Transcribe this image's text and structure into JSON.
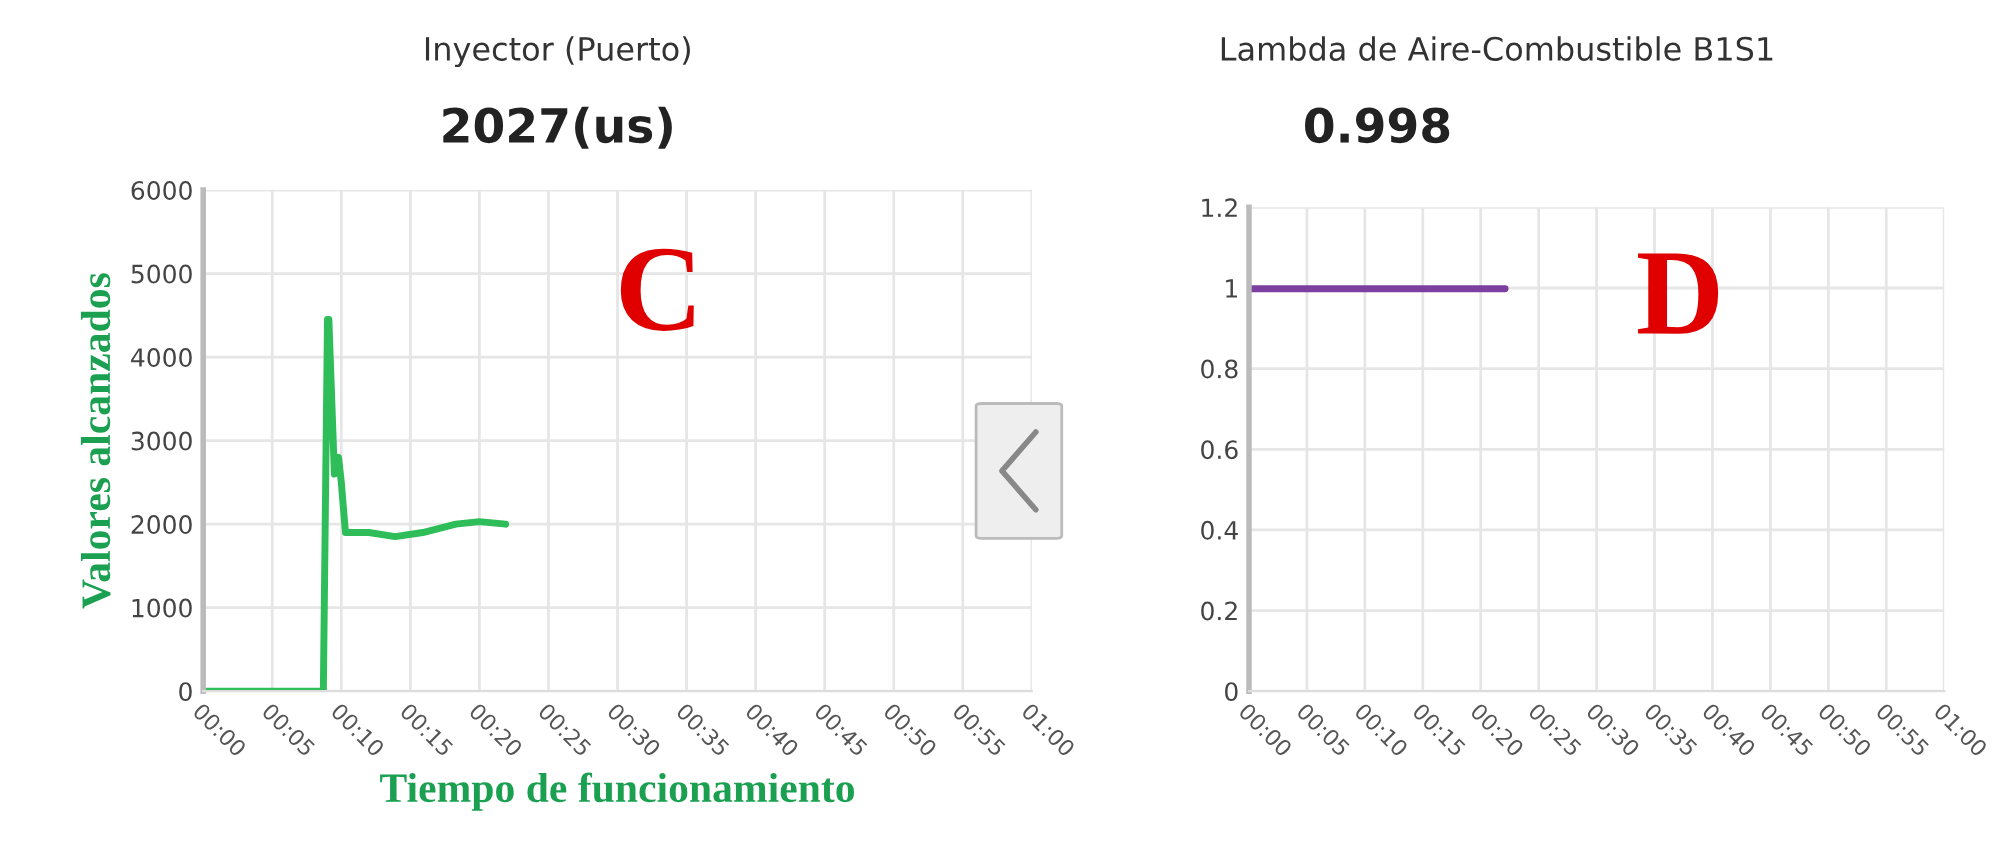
{
  "chart_data": [
    {
      "type": "line",
      "title": "Inyector (Puerto)",
      "subtitle": "2027(us)",
      "xlabel": "Tiempo de funcionamiento",
      "ylabel": "Valores alcanzados",
      "annotations": [
        "C"
      ],
      "series": [
        {
          "color": "#2ebd59",
          "x": [
            0,
            8.7,
            9.0,
            9.1,
            9.5,
            9.8,
            10.0,
            10.3,
            11.0,
            12.0,
            13.9,
            15.9,
            18.3,
            20.0,
            21.9
          ],
          "values": [
            0,
            0,
            4450,
            4450,
            2600,
            2800,
            2500,
            1900,
            1900,
            1900,
            1850,
            1900,
            2000,
            2030,
            2000
          ]
        }
      ],
      "xlim": [
        0,
        60
      ],
      "xticks": [
        {
          "value": 0,
          "label": "00:00"
        },
        {
          "value": 5,
          "label": "00:05"
        },
        {
          "value": 10,
          "label": "00:10"
        },
        {
          "value": 15,
          "label": "00:15"
        },
        {
          "value": 20,
          "label": "00:20"
        },
        {
          "value": 25,
          "label": "00:25"
        },
        {
          "value": 30,
          "label": "00:30"
        },
        {
          "value": 35,
          "label": "00:35"
        },
        {
          "value": 40,
          "label": "00:40"
        },
        {
          "value": 45,
          "label": "00:45"
        },
        {
          "value": 50,
          "label": "00:50"
        },
        {
          "value": 55,
          "label": "00:55"
        },
        {
          "value": 60,
          "label": "01:00"
        }
      ],
      "ylim": [
        0,
        6000
      ],
      "yticks": [
        0,
        1000,
        2000,
        3000,
        4000,
        5000,
        6000
      ],
      "grid": true,
      "marker": "none",
      "line_style": "solid"
    },
    {
      "type": "line",
      "title": "Lambda de Aire-Combustible B1S1",
      "subtitle": "0.998",
      "annotations": [
        "D"
      ],
      "series": [
        {
          "color": "#7b3fa0",
          "x": [
            0,
            22.1
          ],
          "values": [
            0.998,
            0.998
          ]
        }
      ],
      "xlim": [
        0,
        60
      ],
      "xticks": [
        {
          "value": 0,
          "label": "00:00"
        },
        {
          "value": 5,
          "label": "00:05"
        },
        {
          "value": 10,
          "label": "00:10"
        },
        {
          "value": 15,
          "label": "00:15"
        },
        {
          "value": 20,
          "label": "00:20"
        },
        {
          "value": 25,
          "label": "00:25"
        },
        {
          "value": 30,
          "label": "00:30"
        },
        {
          "value": 35,
          "label": "00:35"
        },
        {
          "value": 40,
          "label": "00:40"
        },
        {
          "value": 45,
          "label": "00:45"
        },
        {
          "value": 50,
          "label": "00:50"
        },
        {
          "value": 55,
          "label": "00:55"
        },
        {
          "value": 60,
          "label": "01:00"
        }
      ],
      "ylim": [
        0,
        1.2
      ],
      "yticks": [
        0,
        0.2,
        0.4,
        0.6,
        0.8,
        1,
        1.2
      ],
      "grid": true,
      "marker": "none",
      "line_style": "solid"
    }
  ]
}
